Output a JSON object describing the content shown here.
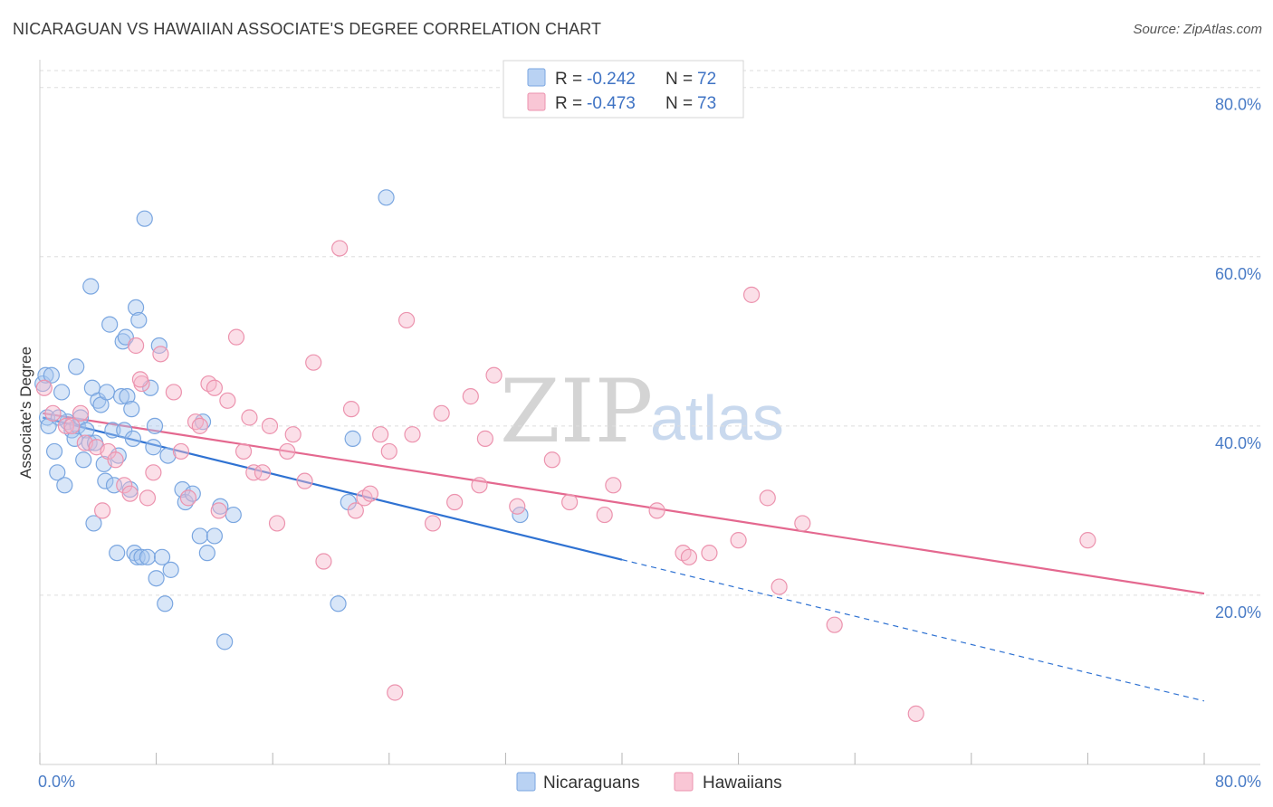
{
  "title": "NICARAGUAN VS HAWAIIAN ASSOCIATE'S DEGREE CORRELATION CHART",
  "source": "Source: ZipAtlas.com",
  "watermark": {
    "zip": "ZIP",
    "atlas": "atlas"
  },
  "legend_box": [
    {
      "r_label": "R =",
      "r_value": "-0.242",
      "n_label": "N =",
      "n_value": "72"
    },
    {
      "r_label": "R =",
      "r_value": "-0.473",
      "n_label": "N =",
      "n_value": "73"
    }
  ],
  "bottom_legend": [
    "Nicaraguans",
    "Hawaiians"
  ],
  "colors": {
    "nic_fill": "#a9c8f0",
    "nic_stroke": "#7aa6e0",
    "nic_line": "#2f72d2",
    "haw_fill": "#f7b8cb",
    "haw_stroke": "#ec93ae",
    "haw_line": "#e4688f",
    "axis_label": "#4a7cc6",
    "grid": "#dddddd"
  },
  "chart_data": {
    "type": "scatter",
    "title": "NICARAGUAN VS HAWAIIAN ASSOCIATE'S DEGREE CORRELATION CHART",
    "xlabel": "",
    "ylabel": "Associate's Degree",
    "xlim": [
      0,
      80
    ],
    "ylim": [
      0,
      82
    ],
    "x_tick_labels": [
      "0.0%",
      "80.0%"
    ],
    "y_ticks": [
      20,
      40,
      60,
      80
    ],
    "y_tick_labels": [
      "20.0%",
      "40.0%",
      "60.0%",
      "80.0%"
    ],
    "grid": true,
    "series": [
      {
        "name": "Nicaraguans",
        "r": -0.242,
        "n": 72,
        "trend": {
          "x0": 0.2,
          "y0": 41.0,
          "x1": 40.0,
          "y1": 24.2,
          "dash_to_x": 80,
          "dash_to_y": 7.5
        },
        "points": [
          [
            0.2,
            45.0
          ],
          [
            0.4,
            46.0
          ],
          [
            0.5,
            41.0
          ],
          [
            0.6,
            40.0
          ],
          [
            0.8,
            46.0
          ],
          [
            1.0,
            37.0
          ],
          [
            1.2,
            34.5
          ],
          [
            1.5,
            44.0
          ],
          [
            1.7,
            33.0
          ],
          [
            1.9,
            40.5
          ],
          [
            2.2,
            39.5
          ],
          [
            2.4,
            38.5
          ],
          [
            2.5,
            47.0
          ],
          [
            2.6,
            40.0
          ],
          [
            2.8,
            41.0
          ],
          [
            3.0,
            36.0
          ],
          [
            3.2,
            39.5
          ],
          [
            3.4,
            38.0
          ],
          [
            3.5,
            56.5
          ],
          [
            3.6,
            44.5
          ],
          [
            3.7,
            28.5
          ],
          [
            3.8,
            38.0
          ],
          [
            4.0,
            43.0
          ],
          [
            4.2,
            42.5
          ],
          [
            4.4,
            35.5
          ],
          [
            4.5,
            33.5
          ],
          [
            4.6,
            44.0
          ],
          [
            4.8,
            52.0
          ],
          [
            5.0,
            39.5
          ],
          [
            5.1,
            33.0
          ],
          [
            5.3,
            25.0
          ],
          [
            5.4,
            36.5
          ],
          [
            5.6,
            43.5
          ],
          [
            5.7,
            50.0
          ],
          [
            5.8,
            39.5
          ],
          [
            6.0,
            43.5
          ],
          [
            6.2,
            32.5
          ],
          [
            6.3,
            42.0
          ],
          [
            6.4,
            38.5
          ],
          [
            6.5,
            25.0
          ],
          [
            6.6,
            54.0
          ],
          [
            6.7,
            24.5
          ],
          [
            6.8,
            52.5
          ],
          [
            7.0,
            24.5
          ],
          [
            7.2,
            64.5
          ],
          [
            7.4,
            24.5
          ],
          [
            7.6,
            44.5
          ],
          [
            7.8,
            37.5
          ],
          [
            7.9,
            40.0
          ],
          [
            8.0,
            22.0
          ],
          [
            8.2,
            49.5
          ],
          [
            8.4,
            24.5
          ],
          [
            8.6,
            19.0
          ],
          [
            8.8,
            36.5
          ],
          [
            9.0,
            23.0
          ],
          [
            9.8,
            32.5
          ],
          [
            10.0,
            31.0
          ],
          [
            10.5,
            32.0
          ],
          [
            11.0,
            27.0
          ],
          [
            11.2,
            40.5
          ],
          [
            11.5,
            25.0
          ],
          [
            12.0,
            27.0
          ],
          [
            12.4,
            30.5
          ],
          [
            12.7,
            14.5
          ],
          [
            13.3,
            29.5
          ],
          [
            20.5,
            19.0
          ],
          [
            21.2,
            31.0
          ],
          [
            21.5,
            38.5
          ],
          [
            23.8,
            67.0
          ],
          [
            33.0,
            29.5
          ],
          [
            5.9,
            50.5
          ],
          [
            1.3,
            41.0
          ]
        ]
      },
      {
        "name": "Hawaiians",
        "r": -0.473,
        "n": 73,
        "trend": {
          "x0": 0.2,
          "y0": 41.5,
          "x1": 80,
          "y1": 20.2
        },
        "points": [
          [
            0.3,
            44.5
          ],
          [
            0.9,
            41.5
          ],
          [
            1.8,
            40.0
          ],
          [
            2.8,
            41.5
          ],
          [
            3.1,
            38.0
          ],
          [
            3.9,
            37.5
          ],
          [
            4.3,
            30.0
          ],
          [
            4.7,
            37.0
          ],
          [
            5.2,
            36.0
          ],
          [
            5.8,
            33.0
          ],
          [
            6.2,
            32.0
          ],
          [
            6.6,
            49.5
          ],
          [
            7.0,
            45.0
          ],
          [
            7.4,
            31.5
          ],
          [
            7.8,
            34.5
          ],
          [
            8.3,
            48.5
          ],
          [
            9.2,
            44.0
          ],
          [
            9.7,
            37.0
          ],
          [
            10.2,
            31.5
          ],
          [
            10.7,
            40.5
          ],
          [
            11.0,
            40.0
          ],
          [
            11.6,
            45.0
          ],
          [
            12.0,
            44.5
          ],
          [
            12.3,
            30.0
          ],
          [
            12.9,
            43.0
          ],
          [
            13.5,
            50.5
          ],
          [
            14.0,
            37.0
          ],
          [
            14.4,
            41.0
          ],
          [
            14.7,
            34.5
          ],
          [
            15.3,
            34.5
          ],
          [
            15.8,
            40.0
          ],
          [
            16.3,
            28.5
          ],
          [
            17.0,
            37.0
          ],
          [
            17.4,
            39.0
          ],
          [
            18.2,
            33.5
          ],
          [
            18.8,
            47.5
          ],
          [
            19.5,
            24.0
          ],
          [
            20.6,
            61.0
          ],
          [
            21.4,
            42.0
          ],
          [
            21.7,
            30.0
          ],
          [
            22.3,
            31.5
          ],
          [
            22.7,
            32.0
          ],
          [
            23.4,
            39.0
          ],
          [
            24.0,
            37.0
          ],
          [
            24.4,
            8.5
          ],
          [
            25.2,
            52.5
          ],
          [
            25.6,
            39.0
          ],
          [
            27.0,
            28.5
          ],
          [
            27.6,
            41.5
          ],
          [
            28.5,
            31.0
          ],
          [
            29.6,
            43.5
          ],
          [
            30.2,
            33.0
          ],
          [
            30.6,
            38.5
          ],
          [
            31.2,
            46.0
          ],
          [
            32.8,
            30.5
          ],
          [
            35.2,
            36.0
          ],
          [
            36.4,
            31.0
          ],
          [
            38.8,
            29.5
          ],
          [
            39.4,
            33.0
          ],
          [
            42.4,
            30.0
          ],
          [
            44.2,
            25.0
          ],
          [
            44.6,
            24.5
          ],
          [
            46.0,
            25.0
          ],
          [
            48.0,
            26.5
          ],
          [
            48.9,
            55.5
          ],
          [
            50.0,
            31.5
          ],
          [
            50.8,
            21.0
          ],
          [
            52.4,
            28.5
          ],
          [
            54.6,
            16.5
          ],
          [
            60.2,
            6.0
          ],
          [
            72.0,
            26.5
          ],
          [
            6.9,
            45.5
          ],
          [
            2.2,
            40.0
          ]
        ]
      }
    ]
  }
}
